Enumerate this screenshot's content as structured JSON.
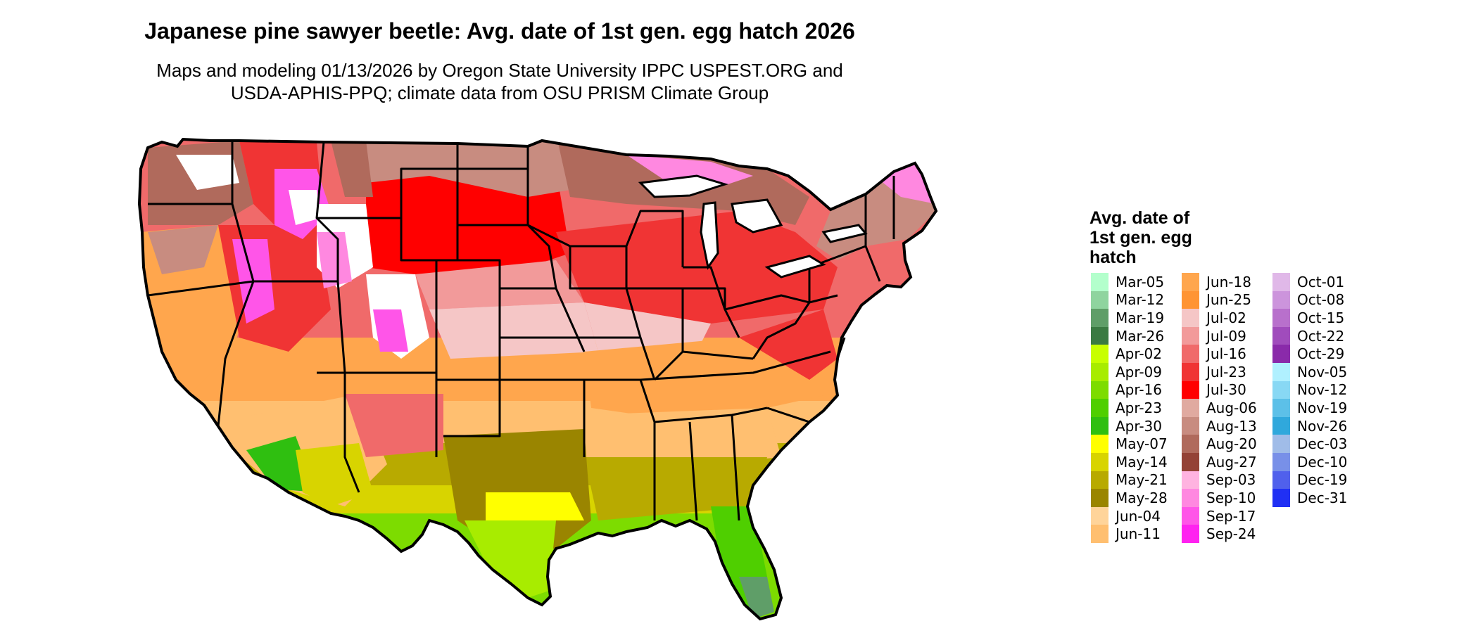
{
  "title": "Japanese pine sawyer beetle: Avg. date of 1st gen. egg hatch 2026",
  "subtitle_line1": "Maps and modeling 01/13/2026 by Oregon State University IPPC USPEST.ORG and",
  "subtitle_line2": "USDA-APHIS-PPQ; climate data from OSU PRISM Climate Group",
  "legend": {
    "title_line1": "Avg. date of",
    "title_line2": "1st gen. egg",
    "title_line3": "hatch",
    "columns": [
      [
        {
          "label": "Mar-05",
          "color": "#b3ffcc"
        },
        {
          "label": "Mar-12",
          "color": "#8fd49f"
        },
        {
          "label": "Mar-19",
          "color": "#5f9e68"
        },
        {
          "label": "Mar-26",
          "color": "#3a7a42"
        },
        {
          "label": "Apr-02",
          "color": "#c8ff00"
        },
        {
          "label": "Apr-09",
          "color": "#a8ec00"
        },
        {
          "label": "Apr-16",
          "color": "#7ddc00"
        },
        {
          "label": "Apr-23",
          "color": "#4fcf00"
        },
        {
          "label": "Apr-30",
          "color": "#2fbf10"
        },
        {
          "label": "May-07",
          "color": "#ffff00"
        },
        {
          "label": "May-14",
          "color": "#d8d400"
        },
        {
          "label": "May-21",
          "color": "#b8aa00"
        },
        {
          "label": "May-28",
          "color": "#9a8500"
        },
        {
          "label": "Jun-04",
          "color": "#ffd49a"
        },
        {
          "label": "Jun-11",
          "color": "#ffbf70"
        }
      ],
      [
        {
          "label": "Jun-18",
          "color": "#ffa64d"
        },
        {
          "label": "Jun-25",
          "color": "#ff9433"
        },
        {
          "label": "Jul-02",
          "color": "#f5c6c6"
        },
        {
          "label": "Jul-09",
          "color": "#f29a9a"
        },
        {
          "label": "Jul-16",
          "color": "#f06a6a"
        },
        {
          "label": "Jul-23",
          "color": "#f03434"
        },
        {
          "label": "Jul-30",
          "color": "#ff0000"
        },
        {
          "label": "Aug-06",
          "color": "#e0aaa0"
        },
        {
          "label": "Aug-13",
          "color": "#c88c80"
        },
        {
          "label": "Aug-20",
          "color": "#b06a5c"
        },
        {
          "label": "Aug-27",
          "color": "#944236"
        },
        {
          "label": "Sep-03",
          "color": "#ffb3e0"
        },
        {
          "label": "Sep-10",
          "color": "#ff88e0"
        },
        {
          "label": "Sep-17",
          "color": "#ff55e8"
        },
        {
          "label": "Sep-24",
          "color": "#ff22f0"
        }
      ],
      [
        {
          "label": "Oct-01",
          "color": "#e0b8e8"
        },
        {
          "label": "Oct-08",
          "color": "#cc94dc"
        },
        {
          "label": "Oct-15",
          "color": "#b870cc"
        },
        {
          "label": "Oct-22",
          "color": "#a04cbc"
        },
        {
          "label": "Oct-29",
          "color": "#8a2aaa"
        },
        {
          "label": "Nov-05",
          "color": "#b0f0ff"
        },
        {
          "label": "Nov-12",
          "color": "#88d8f4"
        },
        {
          "label": "Nov-19",
          "color": "#5cc0e8"
        },
        {
          "label": "Nov-26",
          "color": "#30a8dc"
        },
        {
          "label": "Dec-03",
          "color": "#a0bce8"
        },
        {
          "label": "Dec-10",
          "color": "#7890e8"
        },
        {
          "label": "Dec-19",
          "color": "#5060ec"
        },
        {
          "label": "Dec-31",
          "color": "#2030f4"
        }
      ]
    ]
  }
}
